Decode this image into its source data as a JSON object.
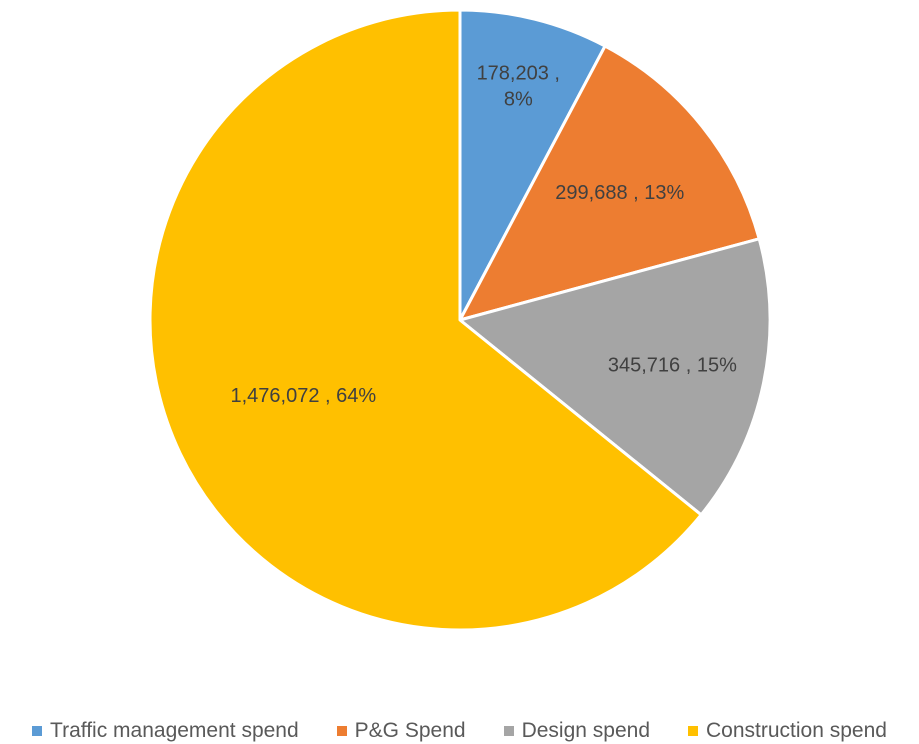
{
  "chart_data": {
    "type": "pie",
    "title": "",
    "legend_position": "bottom",
    "slices": [
      {
        "name": "Traffic management spend",
        "value": 178203,
        "percent": 8,
        "color": "#5B9BD5",
        "label": "178,203 , 8%",
        "label_lines": [
          "178,203 ,",
          "8%"
        ]
      },
      {
        "name": "P&G Spend",
        "value": 299688,
        "percent": 13,
        "color": "#ED7D31",
        "label": "299,688 , 13%",
        "label_lines": [
          "299,688 , 13%"
        ]
      },
      {
        "name": "Design spend",
        "value": 345716,
        "percent": 15,
        "color": "#A5A5A5",
        "label": "345,716 , 15%",
        "label_lines": [
          "345,716 , 15%"
        ]
      },
      {
        "name": "Construction spend",
        "value": 1476072,
        "percent": 64,
        "color": "#FFC000",
        "label": "1,476,072 , 64%",
        "label_lines": [
          "1,476,072 , 64%"
        ]
      }
    ]
  }
}
